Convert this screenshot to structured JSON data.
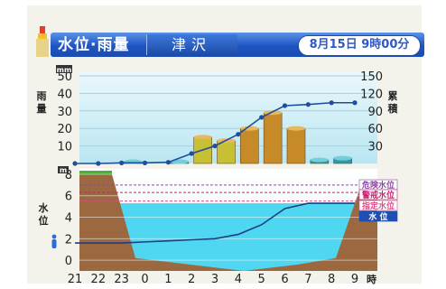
{
  "header": {
    "title": "水位·雨量",
    "station": "津沢",
    "timestamp": "8月15日 9時00分"
  },
  "colors": {
    "header_blue": "#1f55c2",
    "rain_bar": "#c68a28",
    "rain_bar_light": "#c7c035",
    "water": "#4fd6f0",
    "ground": "#9c6840",
    "grass": "#4caf35",
    "line": "#1e4f9c",
    "level_danger": "#8a4aa0",
    "level_warning": "#c82070",
    "level_caution": "#e04a8a",
    "level_current": "#1f4fb0"
  },
  "icons": {
    "logo": "tower-logo-icon",
    "person": "person-icon"
  },
  "chart_data": [
    {
      "type": "bar",
      "panel": "rainfall",
      "y_left_unit": "mm",
      "y_left_label": "雨量",
      "y_left_ticks": [
        10,
        20,
        30,
        40,
        50
      ],
      "ylim": [
        0,
        50
      ],
      "y_right_label": "累積",
      "y_right_ticks": [
        30,
        60,
        90,
        120,
        150
      ],
      "y2lim": [
        0,
        150
      ],
      "categories": [
        "21",
        "22",
        "23",
        "0",
        "1",
        "2",
        "3",
        "4",
        "5",
        "6",
        "7",
        "8",
        "9"
      ],
      "series": [
        {
          "kind": "bar",
          "values": [
            0,
            0,
            1,
            0,
            1,
            15,
            13,
            20,
            29,
            20,
            2,
            3,
            0
          ]
        },
        {
          "kind": "line",
          "values": [
            0,
            0,
            1,
            1,
            2,
            17,
            30,
            50,
            79,
            99,
            101,
            104,
            104
          ]
        }
      ]
    },
    {
      "type": "line",
      "panel": "water_level",
      "y_unit": "m",
      "y_label": "水位",
      "y_ticks": [
        0,
        2,
        4,
        6,
        8
      ],
      "ylim": [
        -1,
        8.5
      ],
      "categories": [
        "21",
        "22",
        "23",
        "0",
        "1",
        "2",
        "3",
        "4",
        "5",
        "6",
        "7",
        "8",
        "9"
      ],
      "x_unit": "時",
      "series": [
        {
          "kind": "line",
          "values": [
            1.6,
            1.6,
            1.6,
            1.7,
            1.8,
            1.9,
            2.0,
            2.4,
            3.3,
            4.8,
            5.3,
            5.3,
            5.3
          ]
        }
      ],
      "reference_levels": [
        {
          "name": "危険水位",
          "value": 7.0
        },
        {
          "name": "警戒水位",
          "value": 6.3
        },
        {
          "name": "指定水位",
          "value": 5.5
        },
        {
          "name": "水 位",
          "value": 5.3
        }
      ]
    }
  ]
}
